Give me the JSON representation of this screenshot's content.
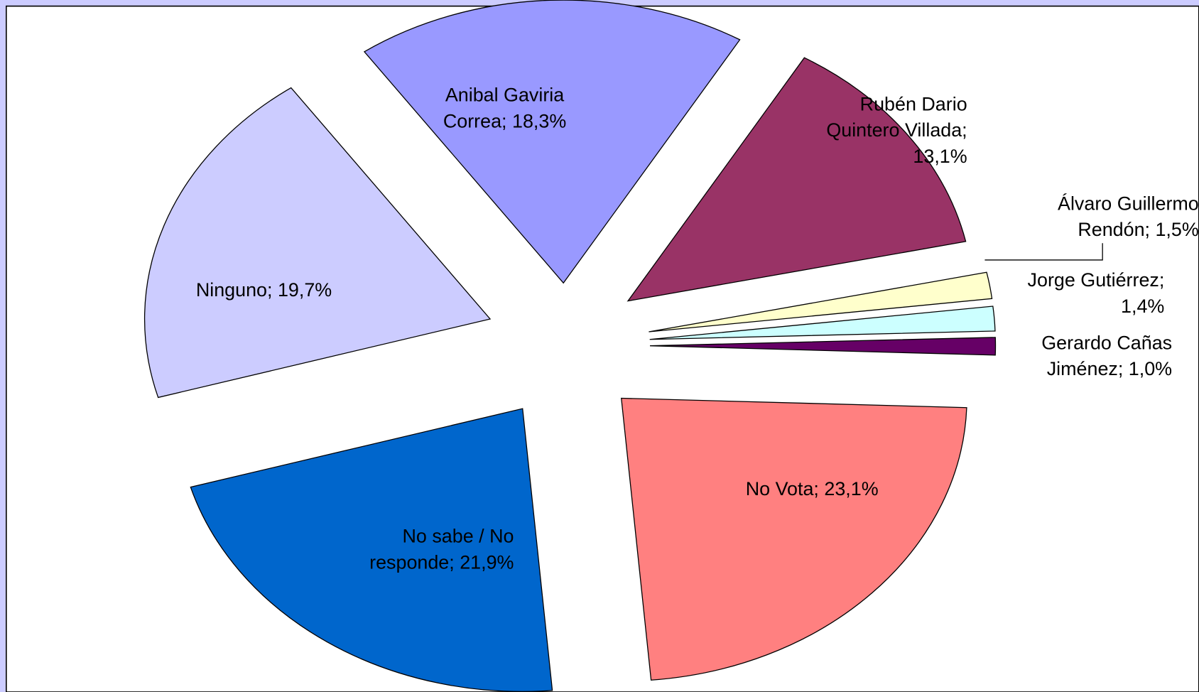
{
  "chart_data": {
    "type": "pie",
    "categories": [
      null,
      null,
      null,
      null,
      null,
      null,
      null,
      null
    ],
    "values": [
      13.1,
      1.5,
      1.4,
      1.0,
      23.1,
      21.9,
      19.7,
      18.3
    ],
    "value_labels": [
      [
        "Rubén Dario",
        "Quintero Villada;",
        "13,1%"
      ],
      [
        "Álvaro Guillermo",
        "Rendón; 1,5%"
      ],
      [
        "Jorge Gutiérrez;",
        "1,4%"
      ],
      [
        "Gerardo Cañas",
        "Jiménez; 1,0%"
      ],
      [
        "No Vota; 23,1%"
      ],
      [
        "No sabe / No",
        "responde; 21,9%"
      ],
      [
        "Ninguno; 19,7%"
      ],
      [
        "Anibal Gaviria",
        "Correa; 18,3%"
      ]
    ],
    "colors": [
      "#993366",
      "#ffffcc",
      "#ccffff",
      "#660066",
      "#ff8080",
      "#0066cc",
      "#ccccff",
      "#9999ff"
    ]
  }
}
